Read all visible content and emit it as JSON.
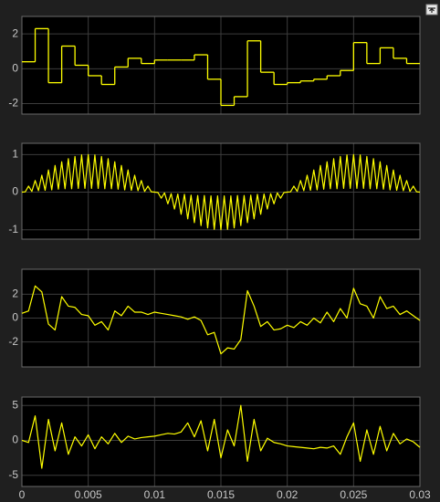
{
  "chart_data": [
    {
      "type": "line",
      "drawstyle": "steps-post",
      "color": "#ffff00",
      "grid": true,
      "show_xtick_labels": false,
      "xlim": [
        0,
        0.03
      ],
      "xticks": [
        0,
        0.005,
        0.01,
        0.015,
        0.02,
        0.025,
        0.03
      ],
      "ylim": [
        -2.6,
        3
      ],
      "yticks": [
        -2,
        0,
        2
      ],
      "x": [
        0,
        0.001,
        0.002,
        0.003,
        0.004,
        0.005,
        0.006,
        0.007,
        0.008,
        0.009,
        0.01,
        0.011,
        0.012,
        0.013,
        0.014,
        0.015,
        0.016,
        0.017,
        0.018,
        0.019,
        0.02,
        0.021,
        0.022,
        0.023,
        0.024,
        0.025,
        0.026,
        0.027,
        0.028,
        0.029,
        0.03
      ],
      "values": [
        0.4,
        2.3,
        -0.8,
        1.3,
        0.2,
        -0.4,
        -0.9,
        0.1,
        0.6,
        0.3,
        0.5,
        0.5,
        0.5,
        0.8,
        -0.6,
        -2.1,
        -1.6,
        1.6,
        -0.2,
        -0.9,
        -0.8,
        -0.7,
        -0.6,
        -0.4,
        -0.1,
        1.5,
        0.3,
        1.2,
        0.6,
        0.3,
        0.3
      ]
    },
    {
      "type": "line",
      "color": "#ffff00",
      "grid": true,
      "show_xtick_labels": false,
      "xlim": [
        0,
        0.03
      ],
      "xticks": [
        0,
        0.005,
        0.01,
        0.015,
        0.02,
        0.025,
        0.03
      ],
      "ylim": [
        -1.25,
        1.3
      ],
      "yticks": [
        -1,
        0,
        1
      ],
      "x": [
        0,
        0.00025,
        0.0005,
        0.00075,
        0.001,
        0.00125,
        0.0015,
        0.00175,
        0.002,
        0.00225,
        0.0025,
        0.00275,
        0.003,
        0.00325,
        0.0035,
        0.00375,
        0.004,
        0.00425,
        0.0045,
        0.00475,
        0.005,
        0.00525,
        0.0055,
        0.00575,
        0.006,
        0.00625,
        0.0065,
        0.00675,
        0.007,
        0.00725,
        0.0075,
        0.00775,
        0.008,
        0.00825,
        0.0085,
        0.00875,
        0.009,
        0.00925,
        0.0095,
        0.00975,
        0.01,
        0.01025,
        0.0105,
        0.01075,
        0.011,
        0.01125,
        0.0115,
        0.01175,
        0.012,
        0.01225,
        0.0125,
        0.01275,
        0.013,
        0.01325,
        0.0135,
        0.01375,
        0.014,
        0.01425,
        0.0145,
        0.01475,
        0.015,
        0.01525,
        0.0155,
        0.01575,
        0.016,
        0.01625,
        0.0165,
        0.01675,
        0.017,
        0.01725,
        0.0175,
        0.01775,
        0.018,
        0.01825,
        0.0185,
        0.01875,
        0.019,
        0.01925,
        0.0195,
        0.01975,
        0.02,
        0.02025,
        0.0205,
        0.02075,
        0.021,
        0.02125,
        0.0215,
        0.02175,
        0.022,
        0.02225,
        0.0225,
        0.02275,
        0.023,
        0.02325,
        0.0235,
        0.02375,
        0.024,
        0.02425,
        0.0245,
        0.02475,
        0.025,
        0.02525,
        0.0255,
        0.02575,
        0.026,
        0.02625,
        0.0265,
        0.02675,
        0.027,
        0.02725,
        0.0275,
        0.02775,
        0.028,
        0.02825,
        0.0285,
        0.02875,
        0.029,
        0.02925,
        0.0295,
        0.02975,
        0.03
      ],
      "values": [
        0,
        0.008,
        0.16,
        0.02,
        0.31,
        0.04,
        0.45,
        0.05,
        0.59,
        0.06,
        0.71,
        0.08,
        0.81,
        0.09,
        0.89,
        0.09,
        0.95,
        0.1,
        0.99,
        0.1,
        1,
        0.1,
        0.99,
        0.1,
        0.95,
        0.09,
        0.89,
        0.09,
        0.81,
        0.08,
        0.71,
        0.06,
        0.59,
        0.05,
        0.45,
        0.04,
        0.31,
        0.02,
        0.16,
        0.01,
        0,
        -0.008,
        -0.16,
        -0.02,
        -0.31,
        -0.04,
        -0.45,
        -0.05,
        -0.59,
        -0.06,
        -0.71,
        -0.08,
        -0.81,
        -0.09,
        -0.89,
        -0.09,
        -0.95,
        -0.1,
        -0.99,
        -0.1,
        -1,
        -0.1,
        -0.99,
        -0.1,
        -0.95,
        -0.09,
        -0.89,
        -0.09,
        -0.81,
        -0.08,
        -0.71,
        -0.06,
        -0.59,
        -0.05,
        -0.45,
        -0.04,
        -0.31,
        -0.02,
        -0.16,
        -0.01,
        0,
        0.008,
        0.16,
        0.02,
        0.31,
        0.04,
        0.45,
        0.05,
        0.59,
        0.06,
        0.71,
        0.08,
        0.81,
        0.09,
        0.89,
        0.09,
        0.95,
        0.1,
        0.99,
        0.1,
        1,
        0.1,
        0.99,
        0.1,
        0.95,
        0.09,
        0.89,
        0.09,
        0.81,
        0.08,
        0.71,
        0.06,
        0.59,
        0.05,
        0.45,
        0.04,
        0.31,
        0.02,
        0.16,
        0.01,
        0
      ]
    },
    {
      "type": "line",
      "color": "#ffff00",
      "grid": true,
      "show_xtick_labels": false,
      "xlim": [
        0,
        0.03
      ],
      "xticks": [
        0,
        0.005,
        0.01,
        0.015,
        0.02,
        0.025,
        0.03
      ],
      "ylim": [
        -4.1,
        4.1
      ],
      "yticks": [
        -2,
        0,
        2
      ],
      "x": [
        0,
        0.0005,
        0.001,
        0.0015,
        0.002,
        0.0025,
        0.003,
        0.0035,
        0.004,
        0.0045,
        0.005,
        0.0055,
        0.006,
        0.0065,
        0.007,
        0.0075,
        0.008,
        0.0085,
        0.009,
        0.0095,
        0.01,
        0.0105,
        0.011,
        0.0115,
        0.012,
        0.0125,
        0.013,
        0.0135,
        0.014,
        0.0145,
        0.015,
        0.0155,
        0.016,
        0.0165,
        0.017,
        0.0175,
        0.018,
        0.0185,
        0.019,
        0.0195,
        0.02,
        0.0205,
        0.021,
        0.0215,
        0.022,
        0.0225,
        0.023,
        0.0235,
        0.024,
        0.0245,
        0.025,
        0.0255,
        0.026,
        0.0265,
        0.027,
        0.0275,
        0.028,
        0.0285,
        0.029,
        0.0295,
        0.03
      ],
      "values": [
        0.4,
        0.6,
        2.7,
        2.2,
        -0.5,
        -1.0,
        1.8,
        1.0,
        0.9,
        0.3,
        0.2,
        -0.6,
        -0.3,
        -1.0,
        0.6,
        0.2,
        1.0,
        0.5,
        0.5,
        0.3,
        0.5,
        0.4,
        0.3,
        0.2,
        0.1,
        -0.1,
        0.1,
        -0.2,
        -1.4,
        -1.2,
        -3.0,
        -2.5,
        -2.6,
        -1.8,
        2.3,
        1.0,
        -0.7,
        -0.3,
        -1.0,
        -0.9,
        -0.6,
        -0.8,
        -0.3,
        -0.6,
        0.0,
        -0.4,
        0.5,
        -0.3,
        0.8,
        0.0,
        2.5,
        1.2,
        1.0,
        0.0,
        1.8,
        0.8,
        1.0,
        0.3,
        0.6,
        0.2,
        -0.2
      ]
    },
    {
      "type": "line",
      "color": "#ffff00",
      "grid": true,
      "show_xtick_labels": true,
      "xlim": [
        0,
        0.03
      ],
      "xticks": [
        0,
        0.005,
        0.01,
        0.015,
        0.02,
        0.025,
        0.03
      ],
      "ylim": [
        -6.6,
        6.2
      ],
      "yticks": [
        -5,
        0,
        5
      ],
      "x": [
        0,
        0.0005,
        0.001,
        0.0015,
        0.002,
        0.0025,
        0.003,
        0.0035,
        0.004,
        0.0045,
        0.005,
        0.0055,
        0.006,
        0.0065,
        0.007,
        0.0075,
        0.008,
        0.0085,
        0.009,
        0.0095,
        0.01,
        0.0105,
        0.011,
        0.0115,
        0.012,
        0.0125,
        0.013,
        0.0135,
        0.014,
        0.0145,
        0.015,
        0.0155,
        0.016,
        0.0165,
        0.017,
        0.0175,
        0.018,
        0.0185,
        0.019,
        0.0195,
        0.02,
        0.0205,
        0.021,
        0.0215,
        0.022,
        0.0225,
        0.023,
        0.0235,
        0.024,
        0.0245,
        0.025,
        0.0255,
        0.026,
        0.0265,
        0.027,
        0.0275,
        0.028,
        0.0285,
        0.029,
        0.0295,
        0.03
      ],
      "values": [
        0,
        -0.3,
        3.5,
        -4.0,
        3.0,
        -1.5,
        2.5,
        -2.0,
        0.5,
        -0.8,
        0.8,
        -1.2,
        0.5,
        -0.5,
        1.0,
        -0.3,
        0.6,
        0.2,
        0.4,
        0.5,
        0.6,
        0.8,
        1.0,
        0.9,
        1.2,
        2.5,
        0.5,
        2.8,
        -1.5,
        3.0,
        -2.5,
        1.5,
        -0.8,
        5.0,
        -3.0,
        3.0,
        -1.5,
        0.3,
        -0.3,
        -0.5,
        -0.8,
        -0.9,
        -1.0,
        -1.1,
        -1.2,
        -1.0,
        -1.1,
        -0.8,
        -2.0,
        0.5,
        2.5,
        -3.0,
        1.5,
        -2.0,
        2.0,
        -1.5,
        1.0,
        -0.5,
        0.2,
        -0.2,
        -1.0
      ]
    }
  ]
}
